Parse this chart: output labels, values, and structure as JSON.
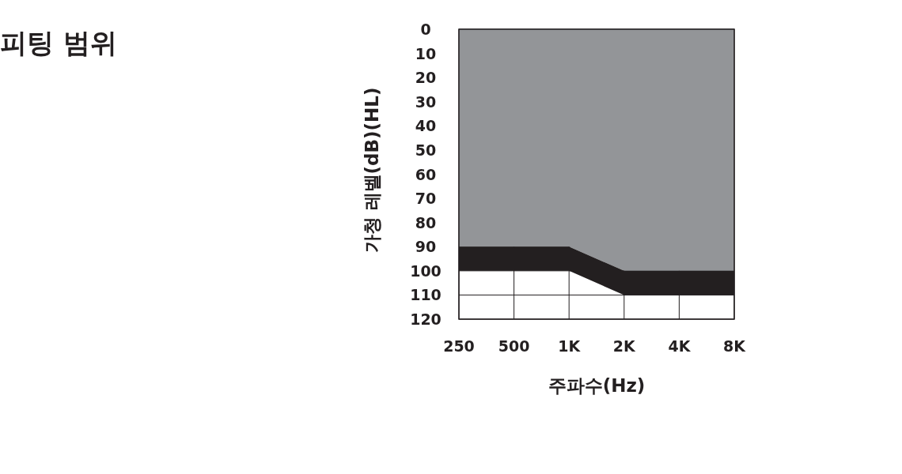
{
  "chart_data": {
    "type": "area",
    "title": "피팅 범위",
    "xlabel": "주파수(Hz)",
    "ylabel": "가청 레벨(dB)(HL)",
    "categories": [
      "250",
      "500",
      "1K",
      "2K",
      "4K",
      "8K"
    ],
    "stacked": true,
    "grid": true,
    "ylim": [
      120,
      0
    ],
    "yticks": [
      0,
      10,
      20,
      30,
      40,
      50,
      60,
      70,
      80,
      90,
      100,
      110,
      120
    ],
    "series": [
      {
        "color": "#939598",
        "values": [
          90,
          90,
          90,
          100,
          100,
          100
        ]
      },
      {
        "color": "#231f20",
        "values": [
          10,
          10,
          10,
          10,
          10,
          10
        ]
      }
    ]
  }
}
